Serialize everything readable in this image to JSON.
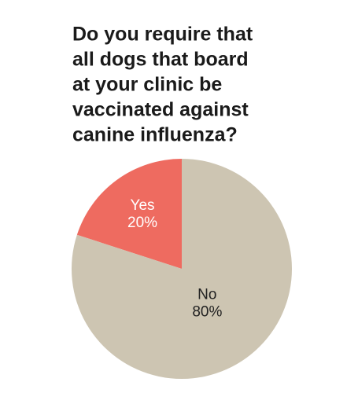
{
  "chart_data": {
    "type": "pie",
    "title": [
      "Do you require that",
      "all dogs that board",
      "at your clinic be",
      "vaccinated against",
      "canine influenza?"
    ],
    "categories": [
      "Yes",
      "No"
    ],
    "values": [
      20,
      80
    ],
    "value_labels": [
      "20%",
      "80%"
    ],
    "colors": [
      "#ee6b60",
      "#cdc5b2"
    ],
    "label_colors": [
      "#ffffff",
      "#222222"
    ]
  }
}
